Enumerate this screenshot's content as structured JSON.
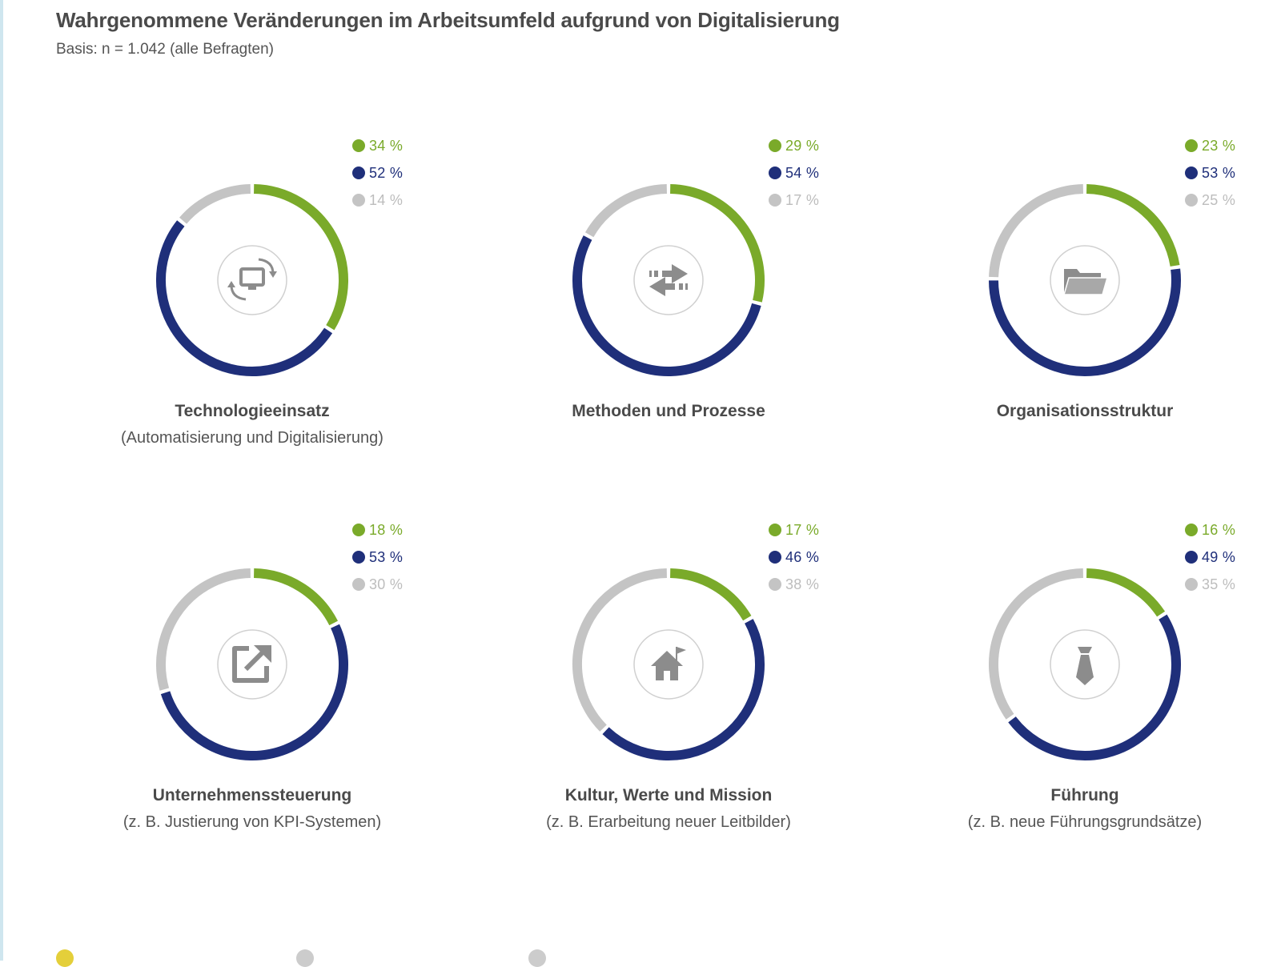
{
  "header": {
    "title": "Wahrgenommene Veränderungen im Arbeitsumfeld aufgrund von Digitalisierung",
    "subtitle": "Basis: n = 1.042 (alle Befragten)"
  },
  "colors": {
    "green": "#7aaa2a",
    "navy": "#1f2f7a",
    "gray": "#c4c4c4",
    "icon": "#8c8c8c",
    "icon_ring": "#d0d0d0"
  },
  "chart_data": {
    "type": "donut",
    "series_order": [
      "green",
      "navy",
      "gray"
    ],
    "panels": [
      {
        "label": "Technologieeinsatz",
        "sublabel": "(Automatisierung und Digitalisierung)",
        "icon": "monitor-sync-icon",
        "values": [
          34,
          52,
          14
        ],
        "value_labels": [
          "34 %",
          "52 %",
          "14 %"
        ]
      },
      {
        "label": "Methoden und Prozesse",
        "sublabel": "",
        "icon": "exchange-arrows-icon",
        "values": [
          29,
          54,
          17
        ],
        "value_labels": [
          "29 %",
          "54 %",
          "17 %"
        ]
      },
      {
        "label": "Organisationsstruktur",
        "sublabel": "",
        "icon": "folder-icon",
        "values": [
          23,
          53,
          25
        ],
        "value_labels": [
          "23 %",
          "53 %",
          "25 %"
        ]
      },
      {
        "label": "Unternehmenssteuerung",
        "sublabel": "(z. B. Justierung von KPI-Systemen)",
        "icon": "external-link-icon",
        "values": [
          18,
          53,
          30
        ],
        "value_labels": [
          "18 %",
          "53 %",
          "30 %"
        ]
      },
      {
        "label": "Kultur, Werte und Mission",
        "sublabel": "(z. B. Erarbeitung neuer Leitbilder)",
        "icon": "house-flag-icon",
        "values": [
          17,
          46,
          38
        ],
        "value_labels": [
          "17 %",
          "46 %",
          "38 %"
        ]
      },
      {
        "label": "Führung",
        "sublabel": "(z. B. neue Führungsgrundsätze)",
        "icon": "necktie-icon",
        "values": [
          16,
          49,
          35
        ],
        "value_labels": [
          "16 %",
          "49 %",
          "35 %"
        ]
      }
    ]
  }
}
